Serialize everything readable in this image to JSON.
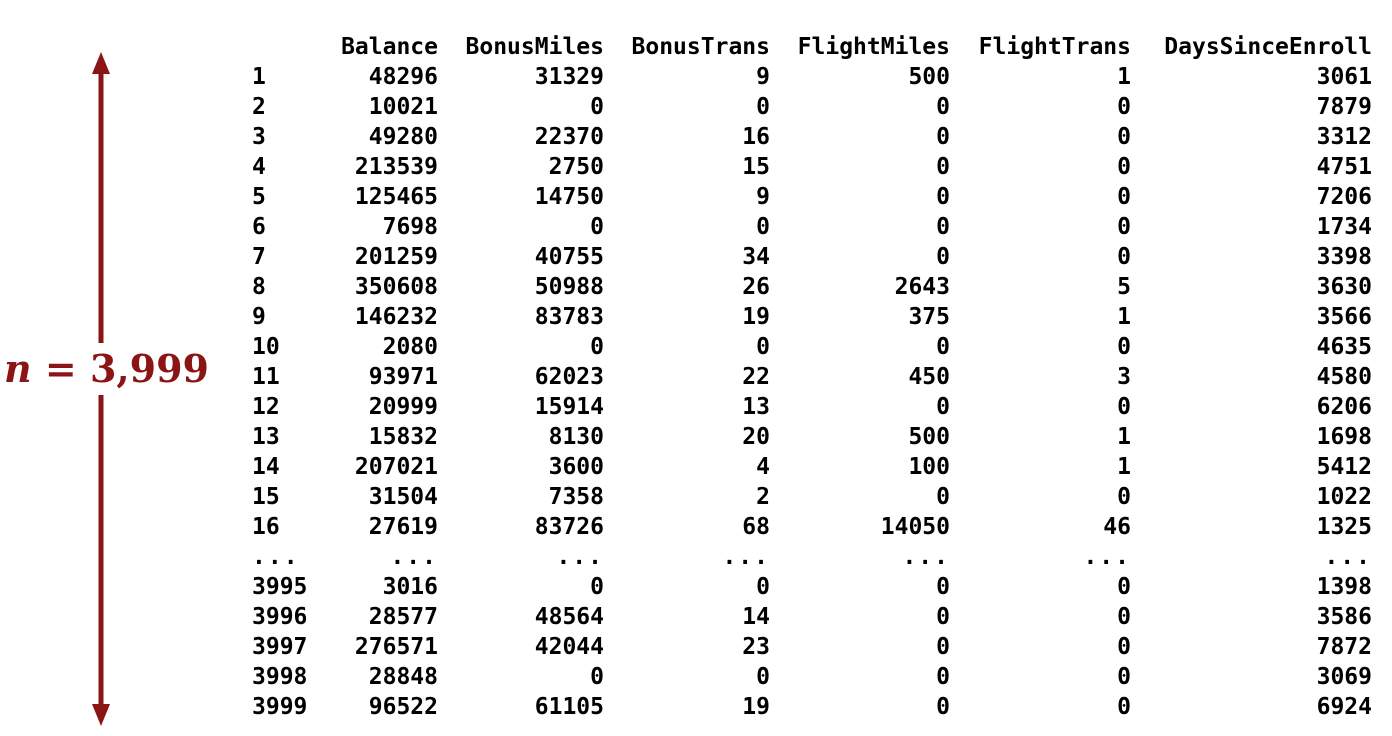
{
  "n_label": {
    "variable": "n",
    "equals": " = ",
    "value": "3,999"
  },
  "colors": {
    "accent": "#8b1414",
    "text": "#000000",
    "background": "#ffffff"
  },
  "table": {
    "columns": [
      "",
      "Balance",
      "BonusMiles",
      "BonusTrans",
      "FlightMiles",
      "FlightTrans",
      "DaysSinceEnroll"
    ],
    "rows": [
      [
        "1",
        "48296",
        "31329",
        "9",
        "500",
        "1",
        "3061"
      ],
      [
        "2",
        "10021",
        "0",
        "0",
        "0",
        "0",
        "7879"
      ],
      [
        "3",
        "49280",
        "22370",
        "16",
        "0",
        "0",
        "3312"
      ],
      [
        "4",
        "213539",
        "2750",
        "15",
        "0",
        "0",
        "4751"
      ],
      [
        "5",
        "125465",
        "14750",
        "9",
        "0",
        "0",
        "7206"
      ],
      [
        "6",
        "7698",
        "0",
        "0",
        "0",
        "0",
        "1734"
      ],
      [
        "7",
        "201259",
        "40755",
        "34",
        "0",
        "0",
        "3398"
      ],
      [
        "8",
        "350608",
        "50988",
        "26",
        "2643",
        "5",
        "3630"
      ],
      [
        "9",
        "146232",
        "83783",
        "19",
        "375",
        "1",
        "3566"
      ],
      [
        "10",
        "2080",
        "0",
        "0",
        "0",
        "0",
        "4635"
      ],
      [
        "11",
        "93971",
        "62023",
        "22",
        "450",
        "3",
        "4580"
      ],
      [
        "12",
        "20999",
        "15914",
        "13",
        "0",
        "0",
        "6206"
      ],
      [
        "13",
        "15832",
        "8130",
        "20",
        "500",
        "1",
        "1698"
      ],
      [
        "14",
        "207021",
        "3600",
        "4",
        "100",
        "1",
        "5412"
      ],
      [
        "15",
        "31504",
        "7358",
        "2",
        "0",
        "0",
        "1022"
      ],
      [
        "16",
        "27619",
        "83726",
        "68",
        "14050",
        "46",
        "1325"
      ],
      [
        "...",
        "...",
        "...",
        "...",
        "...",
        "...",
        "..."
      ],
      [
        "3995",
        "3016",
        "0",
        "0",
        "0",
        "0",
        "1398"
      ],
      [
        "3996",
        "28577",
        "48564",
        "14",
        "0",
        "0",
        "3586"
      ],
      [
        "3997",
        "276571",
        "42044",
        "23",
        "0",
        "0",
        "7872"
      ],
      [
        "3998",
        "28848",
        "0",
        "0",
        "0",
        "0",
        "3069"
      ],
      [
        "3999",
        "96522",
        "61105",
        "19",
        "0",
        "0",
        "6924"
      ]
    ]
  }
}
